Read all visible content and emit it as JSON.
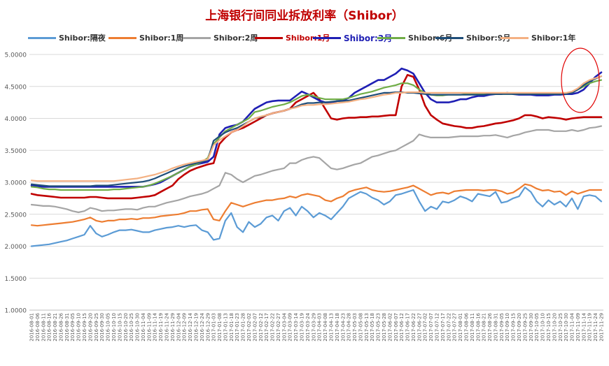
{
  "chart_data": {
    "type": "line",
    "title": "上海银行间同业拆放利率（Shibor）",
    "ylim": [
      1.0,
      5.0
    ],
    "y_ticks": [
      "5.0000",
      "4.5000",
      "4.0000",
      "3.5000",
      "3.0000",
      "2.5000",
      "2.0000",
      "1.5000",
      "1.0000"
    ],
    "x_ticks": [
      "2016-08-01",
      "2016-08-06",
      "2016-08-11",
      "2016-08-16",
      "2016-08-21",
      "2016-08-26",
      "2016-08-31",
      "2016-09-05",
      "2016-09-10",
      "2016-09-15",
      "2016-09-20",
      "2016-09-25",
      "2016-09-30",
      "2016-10-05",
      "2016-10-10",
      "2016-10-15",
      "2016-10-20",
      "2016-10-25",
      "2016-10-30",
      "2016-11-04",
      "2016-11-09",
      "2016-11-14",
      "2016-11-19",
      "2016-11-24",
      "2016-11-29",
      "2016-12-04",
      "2016-12-09",
      "2016-12-14",
      "2016-12-19",
      "2016-12-24",
      "2016-12-29",
      "2017-01-03",
      "2017-01-08",
      "2017-01-13",
      "2017-01-18",
      "2017-01-23",
      "2017-01-28",
      "2017-02-02",
      "2017-02-07",
      "2017-02-12",
      "2017-02-17",
      "2017-02-22",
      "2017-02-27",
      "2017-03-04",
      "2017-03-09",
      "2017-03-14",
      "2017-03-19",
      "2017-03-24",
      "2017-03-29",
      "2017-04-03",
      "2017-04-08",
      "2017-04-13",
      "2017-04-18",
      "2017-04-23",
      "2017-04-28",
      "2017-05-03",
      "2017-05-08",
      "2017-05-13",
      "2017-05-18",
      "2017-05-23",
      "2017-05-28",
      "2017-06-02",
      "2017-06-07",
      "2017-06-12",
      "2017-06-17",
      "2017-06-22",
      "2017-06-27",
      "2017-07-02",
      "2017-07-07",
      "2017-07-12",
      "2017-07-17",
      "2017-07-22",
      "2017-07-27",
      "2017-08-01",
      "2017-08-06",
      "2017-08-11",
      "2017-08-16",
      "2017-08-21",
      "2017-08-26",
      "2017-08-31",
      "2017-09-05",
      "2017-09-10",
      "2017-09-15",
      "2017-09-20",
      "2017-09-25",
      "2017-09-30",
      "2017-10-05",
      "2017-10-10",
      "2017-10-15",
      "2017-10-20",
      "2017-10-25",
      "2017-10-30",
      "2017-11-04",
      "2017-11-09",
      "2017-11-14",
      "2017-11-19",
      "2017-11-24",
      "2017-11-29"
    ],
    "grid": "horizontal",
    "legend_position": "top",
    "annotation": "red ellipse around latest values (late Nov 2017)",
    "series": [
      {
        "name": "Shibor:隔夜",
        "color": "#5b9bd5",
        "values": [
          2.0,
          2.01,
          2.02,
          2.03,
          2.05,
          2.07,
          2.09,
          2.12,
          2.15,
          2.18,
          2.32,
          2.2,
          2.15,
          2.18,
          2.22,
          2.25,
          2.25,
          2.26,
          2.24,
          2.22,
          2.22,
          2.25,
          2.27,
          2.29,
          2.3,
          2.32,
          2.3,
          2.32,
          2.33,
          2.25,
          2.22,
          2.1,
          2.12,
          2.4,
          2.52,
          2.3,
          2.22,
          2.38,
          2.3,
          2.35,
          2.45,
          2.48,
          2.4,
          2.55,
          2.6,
          2.48,
          2.62,
          2.55,
          2.45,
          2.52,
          2.48,
          2.42,
          2.52,
          2.62,
          2.75,
          2.8,
          2.85,
          2.82,
          2.76,
          2.72,
          2.65,
          2.7,
          2.8,
          2.82,
          2.85,
          2.88,
          2.7,
          2.55,
          2.62,
          2.58,
          2.7,
          2.68,
          2.72,
          2.78,
          2.75,
          2.7,
          2.82,
          2.8,
          2.78,
          2.85,
          2.68,
          2.7,
          2.75,
          2.78,
          2.92,
          2.85,
          2.7,
          2.62,
          2.72,
          2.65,
          2.7,
          2.62,
          2.75,
          2.58,
          2.78,
          2.8,
          2.78,
          2.7
        ]
      },
      {
        "name": "Shibor:1周",
        "color": "#ed7d31",
        "values": [
          2.33,
          2.32,
          2.33,
          2.34,
          2.35,
          2.36,
          2.37,
          2.38,
          2.4,
          2.42,
          2.45,
          2.4,
          2.38,
          2.4,
          2.4,
          2.42,
          2.42,
          2.43,
          2.42,
          2.44,
          2.44,
          2.45,
          2.47,
          2.48,
          2.49,
          2.5,
          2.52,
          2.55,
          2.55,
          2.57,
          2.58,
          2.42,
          2.4,
          2.55,
          2.68,
          2.65,
          2.62,
          2.65,
          2.68,
          2.7,
          2.72,
          2.72,
          2.74,
          2.75,
          2.78,
          2.76,
          2.8,
          2.82,
          2.8,
          2.78,
          2.72,
          2.7,
          2.75,
          2.78,
          2.85,
          2.88,
          2.9,
          2.92,
          2.88,
          2.86,
          2.85,
          2.86,
          2.88,
          2.9,
          2.92,
          2.95,
          2.9,
          2.85,
          2.8,
          2.83,
          2.84,
          2.82,
          2.86,
          2.87,
          2.88,
          2.88,
          2.88,
          2.87,
          2.88,
          2.88,
          2.86,
          2.82,
          2.84,
          2.9,
          2.97,
          2.95,
          2.9,
          2.87,
          2.88,
          2.85,
          2.86,
          2.8,
          2.86,
          2.82,
          2.85,
          2.88,
          2.88,
          2.88
        ]
      },
      {
        "name": "Shibor:2周",
        "color": "#a5a5a5",
        "values": [
          2.65,
          2.64,
          2.63,
          2.63,
          2.62,
          2.6,
          2.58,
          2.55,
          2.53,
          2.55,
          2.6,
          2.58,
          2.55,
          2.56,
          2.56,
          2.57,
          2.58,
          2.58,
          2.57,
          2.6,
          2.62,
          2.62,
          2.65,
          2.68,
          2.7,
          2.72,
          2.75,
          2.78,
          2.8,
          2.82,
          2.85,
          2.9,
          2.95,
          3.15,
          3.12,
          3.05,
          3.0,
          3.05,
          3.1,
          3.12,
          3.15,
          3.18,
          3.2,
          3.22,
          3.3,
          3.3,
          3.35,
          3.38,
          3.4,
          3.38,
          3.3,
          3.22,
          3.2,
          3.22,
          3.25,
          3.28,
          3.3,
          3.35,
          3.4,
          3.42,
          3.45,
          3.48,
          3.5,
          3.55,
          3.6,
          3.65,
          3.75,
          3.72,
          3.7,
          3.7,
          3.7,
          3.7,
          3.71,
          3.72,
          3.72,
          3.72,
          3.72,
          3.73,
          3.73,
          3.74,
          3.72,
          3.7,
          3.73,
          3.75,
          3.78,
          3.8,
          3.82,
          3.82,
          3.82,
          3.8,
          3.8,
          3.8,
          3.82,
          3.8,
          3.82,
          3.85,
          3.86,
          3.88
        ]
      },
      {
        "name": "Shibor:1月",
        "color": "#c00000",
        "values": [
          2.82,
          2.8,
          2.79,
          2.78,
          2.77,
          2.76,
          2.76,
          2.76,
          2.76,
          2.76,
          2.77,
          2.77,
          2.76,
          2.75,
          2.75,
          2.75,
          2.75,
          2.75,
          2.76,
          2.77,
          2.78,
          2.8,
          2.85,
          2.9,
          2.95,
          3.05,
          3.12,
          3.18,
          3.22,
          3.25,
          3.28,
          3.3,
          3.6,
          3.7,
          3.78,
          3.82,
          3.85,
          3.9,
          3.95,
          4.0,
          4.05,
          4.08,
          4.1,
          4.12,
          4.15,
          4.25,
          4.3,
          4.35,
          4.4,
          4.3,
          4.15,
          4.0,
          3.98,
          4.0,
          4.01,
          4.01,
          4.02,
          4.02,
          4.03,
          4.03,
          4.04,
          4.05,
          4.05,
          4.5,
          4.68,
          4.65,
          4.45,
          4.2,
          4.05,
          3.98,
          3.92,
          3.9,
          3.88,
          3.87,
          3.85,
          3.85,
          3.87,
          3.88,
          3.9,
          3.92,
          3.93,
          3.95,
          3.97,
          4.0,
          4.05,
          4.05,
          4.03,
          4.0,
          4.02,
          4.01,
          4.0,
          3.98,
          4.0,
          4.01,
          4.02,
          4.02,
          4.02,
          4.02
        ]
      },
      {
        "name": "Shibor:3月",
        "color": "#1f1fb4",
        "values": [
          2.95,
          2.94,
          2.93,
          2.93,
          2.93,
          2.93,
          2.93,
          2.93,
          2.93,
          2.93,
          2.93,
          2.93,
          2.93,
          2.93,
          2.93,
          2.93,
          2.93,
          2.93,
          2.93,
          2.93,
          2.95,
          2.97,
          3.0,
          3.05,
          3.1,
          3.15,
          3.2,
          3.25,
          3.28,
          3.3,
          3.32,
          3.4,
          3.75,
          3.85,
          3.88,
          3.9,
          3.95,
          4.05,
          4.15,
          4.2,
          4.25,
          4.27,
          4.28,
          4.28,
          4.28,
          4.35,
          4.42,
          4.38,
          4.33,
          4.28,
          4.25,
          4.25,
          4.27,
          4.28,
          4.32,
          4.4,
          4.45,
          4.5,
          4.55,
          4.6,
          4.6,
          4.65,
          4.7,
          4.78,
          4.75,
          4.7,
          4.55,
          4.4,
          4.3,
          4.25,
          4.25,
          4.25,
          4.27,
          4.3,
          4.3,
          4.33,
          4.35,
          4.35,
          4.37,
          4.38,
          4.38,
          4.4,
          4.38,
          4.37,
          4.37,
          4.37,
          4.36,
          4.36,
          4.36,
          4.37,
          4.37,
          4.38,
          4.38,
          4.4,
          4.45,
          4.55,
          4.65,
          4.72
        ]
      },
      {
        "name": "Shibor:6月",
        "color": "#70ad47",
        "values": [
          2.93,
          2.92,
          2.9,
          2.89,
          2.89,
          2.88,
          2.88,
          2.88,
          2.88,
          2.88,
          2.88,
          2.88,
          2.88,
          2.88,
          2.89,
          2.89,
          2.9,
          2.91,
          2.92,
          2.93,
          2.95,
          2.98,
          3.02,
          3.06,
          3.1,
          3.15,
          3.2,
          3.25,
          3.28,
          3.32,
          3.38,
          3.6,
          3.7,
          3.8,
          3.85,
          3.9,
          3.95,
          4.0,
          4.1,
          4.12,
          4.15,
          4.18,
          4.2,
          4.22,
          4.25,
          4.3,
          4.35,
          4.37,
          4.35,
          4.32,
          4.3,
          4.3,
          4.3,
          4.3,
          4.32,
          4.35,
          4.38,
          4.4,
          4.42,
          4.45,
          4.48,
          4.5,
          4.52,
          4.55,
          4.55,
          4.52,
          4.45,
          4.4,
          4.37,
          4.36,
          4.36,
          4.37,
          4.37,
          4.37,
          4.38,
          4.38,
          4.38,
          4.38,
          4.38,
          4.38,
          4.38,
          4.38,
          4.38,
          4.38,
          4.38,
          4.38,
          4.38,
          4.38,
          4.38,
          4.38,
          4.38,
          4.39,
          4.4,
          4.45,
          4.5,
          4.55,
          4.58,
          4.6
        ]
      },
      {
        "name": "Shibor:9月",
        "color": "#1f4e79",
        "values": [
          2.97,
          2.96,
          2.95,
          2.94,
          2.94,
          2.94,
          2.94,
          2.94,
          2.94,
          2.94,
          2.94,
          2.95,
          2.95,
          2.95,
          2.96,
          2.97,
          2.98,
          2.99,
          3.0,
          3.01,
          3.03,
          3.06,
          3.1,
          3.14,
          3.18,
          3.22,
          3.25,
          3.28,
          3.3,
          3.32,
          3.35,
          3.65,
          3.72,
          3.78,
          3.82,
          3.85,
          3.9,
          3.95,
          4.0,
          4.02,
          4.05,
          4.08,
          4.1,
          4.12,
          4.15,
          4.18,
          4.22,
          4.24,
          4.24,
          4.25,
          4.25,
          4.26,
          4.27,
          4.27,
          4.28,
          4.3,
          4.32,
          4.34,
          4.36,
          4.38,
          4.4,
          4.4,
          4.41,
          4.41,
          4.4,
          4.4,
          4.39,
          4.38,
          4.37,
          4.37,
          4.37,
          4.37,
          4.37,
          4.37,
          4.37,
          4.37,
          4.37,
          4.37,
          4.38,
          4.38,
          4.38,
          4.38,
          4.38,
          4.38,
          4.38,
          4.38,
          4.38,
          4.38,
          4.38,
          4.38,
          4.38,
          4.38,
          4.4,
          4.45,
          4.52,
          4.58,
          4.62,
          4.66
        ]
      },
      {
        "name": "Shibor:1年",
        "color": "#f4b183",
        "values": [
          3.03,
          3.02,
          3.02,
          3.02,
          3.02,
          3.02,
          3.02,
          3.02,
          3.02,
          3.02,
          3.02,
          3.02,
          3.02,
          3.02,
          3.02,
          3.03,
          3.04,
          3.05,
          3.06,
          3.08,
          3.1,
          3.12,
          3.15,
          3.18,
          3.22,
          3.25,
          3.28,
          3.3,
          3.32,
          3.34,
          3.36,
          3.58,
          3.66,
          3.72,
          3.78,
          3.82,
          3.88,
          3.95,
          4.0,
          4.03,
          4.05,
          4.08,
          4.1,
          4.12,
          4.15,
          4.17,
          4.2,
          4.21,
          4.21,
          4.22,
          4.22,
          4.23,
          4.24,
          4.25,
          4.26,
          4.28,
          4.3,
          4.31,
          4.33,
          4.35,
          4.37,
          4.38,
          4.4,
          4.4,
          4.41,
          4.41,
          4.41,
          4.4,
          4.4,
          4.4,
          4.4,
          4.4,
          4.4,
          4.4,
          4.4,
          4.4,
          4.4,
          4.4,
          4.4,
          4.4,
          4.4,
          4.4,
          4.4,
          4.4,
          4.4,
          4.4,
          4.4,
          4.4,
          4.4,
          4.4,
          4.4,
          4.4,
          4.42,
          4.47,
          4.55,
          4.6,
          4.63,
          4.66
        ]
      }
    ]
  }
}
